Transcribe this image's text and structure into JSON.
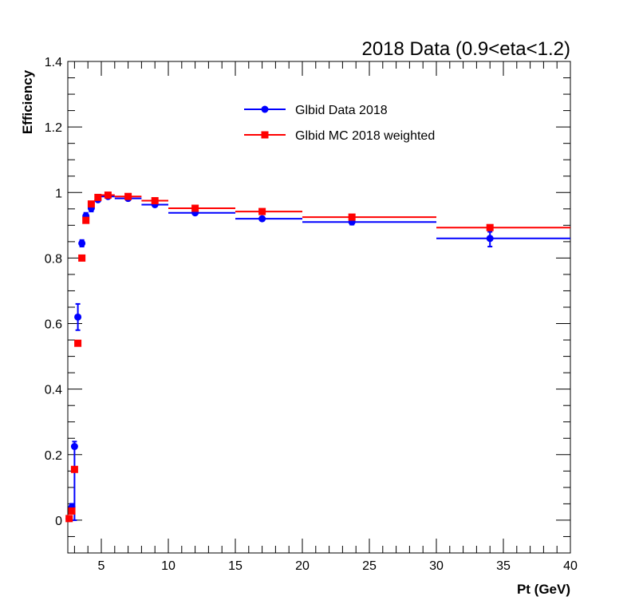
{
  "chart_data": {
    "type": "scatter",
    "title": "2018 Data (0.9<eta<1.2)",
    "xlabel": "Pt (GeV)",
    "ylabel": "Efficiency",
    "xlim": [
      2.5,
      40
    ],
    "ylim": [
      -0.1,
      1.4
    ],
    "xticks": [
      5,
      10,
      15,
      20,
      25,
      30,
      35,
      40
    ],
    "yticks": [
      0,
      0.2,
      0.4,
      0.6,
      0.8,
      1,
      1.2,
      1.4
    ],
    "ytick_labels": [
      "0",
      "0.2",
      "0.4",
      "0.6",
      "0.8",
      "1",
      "1.2",
      "1.4"
    ],
    "legend_position": "top-center",
    "series": [
      {
        "name": "Glbid Data 2018",
        "color": "#0000ff",
        "marker": "circle",
        "points": [
          {
            "x": 2.6,
            "y": 0.005,
            "xlo": 2.5,
            "xhi": 2.7,
            "ylo": 0.003,
            "yhi": 0.003
          },
          {
            "x": 2.8,
            "y": 0.04,
            "xlo": 2.7,
            "xhi": 2.9,
            "ylo": 0.01,
            "yhi": 0.01
          },
          {
            "x": 3.0,
            "y": 0.225,
            "xlo": 2.9,
            "xhi": 3.1,
            "ylo": 0.225,
            "yhi": 0.015
          },
          {
            "x": 3.25,
            "y": 0.62,
            "xlo": 3.1,
            "xhi": 3.4,
            "ylo": 0.04,
            "yhi": 0.04
          },
          {
            "x": 3.55,
            "y": 0.845,
            "xlo": 3.4,
            "xhi": 3.7,
            "ylo": 0.01,
            "yhi": 0.01
          },
          {
            "x": 3.85,
            "y": 0.928,
            "xlo": 3.7,
            "xhi": 4.0,
            "ylo": 0.01,
            "yhi": 0.01
          },
          {
            "x": 4.25,
            "y": 0.952,
            "xlo": 4.0,
            "xhi": 4.5,
            "ylo": 0.01,
            "yhi": 0.01
          },
          {
            "x": 4.75,
            "y": 0.978,
            "xlo": 4.5,
            "xhi": 5.0,
            "ylo": 0.005,
            "yhi": 0.005
          },
          {
            "x": 5.5,
            "y": 0.988,
            "xlo": 5.0,
            "xhi": 6.0,
            "ylo": 0.005,
            "yhi": 0.005
          },
          {
            "x": 7.0,
            "y": 0.982,
            "xlo": 6.0,
            "xhi": 8.0,
            "ylo": 0.005,
            "yhi": 0.005
          },
          {
            "x": 9.0,
            "y": 0.963,
            "xlo": 8.0,
            "xhi": 10.0,
            "ylo": 0.005,
            "yhi": 0.005
          },
          {
            "x": 12.0,
            "y": 0.938,
            "xlo": 10.0,
            "xhi": 15.0,
            "ylo": 0.005,
            "yhi": 0.005
          },
          {
            "x": 17.0,
            "y": 0.92,
            "xlo": 15.0,
            "xhi": 20.0,
            "ylo": 0.006,
            "yhi": 0.006
          },
          {
            "x": 23.7,
            "y": 0.91,
            "xlo": 20.0,
            "xhi": 30.0,
            "ylo": 0.008,
            "yhi": 0.008
          },
          {
            "x": 34.0,
            "y": 0.86,
            "xlo": 30.0,
            "xhi": 40.0,
            "ylo": 0.025,
            "yhi": 0.02
          }
        ]
      },
      {
        "name": "Glbid MC 2018 weighted",
        "color": "#ff0000",
        "marker": "square",
        "points": [
          {
            "x": 2.6,
            "y": 0.005,
            "xlo": 2.5,
            "xhi": 2.7
          },
          {
            "x": 2.8,
            "y": 0.028,
            "xlo": 2.7,
            "xhi": 2.9
          },
          {
            "x": 3.0,
            "y": 0.155,
            "xlo": 2.9,
            "xhi": 3.1
          },
          {
            "x": 3.25,
            "y": 0.54,
            "xlo": 3.1,
            "xhi": 3.4
          },
          {
            "x": 3.55,
            "y": 0.8,
            "xlo": 3.4,
            "xhi": 3.7
          },
          {
            "x": 3.85,
            "y": 0.915,
            "xlo": 3.7,
            "xhi": 4.0
          },
          {
            "x": 4.25,
            "y": 0.965,
            "xlo": 4.0,
            "xhi": 4.5
          },
          {
            "x": 4.75,
            "y": 0.985,
            "xlo": 4.5,
            "xhi": 5.0
          },
          {
            "x": 5.5,
            "y": 0.992,
            "xlo": 5.0,
            "xhi": 6.0
          },
          {
            "x": 7.0,
            "y": 0.988,
            "xlo": 6.0,
            "xhi": 8.0
          },
          {
            "x": 9.0,
            "y": 0.975,
            "xlo": 8.0,
            "xhi": 10.0
          },
          {
            "x": 12.0,
            "y": 0.952,
            "xlo": 10.0,
            "xhi": 15.0
          },
          {
            "x": 17.0,
            "y": 0.942,
            "xlo": 15.0,
            "xhi": 20.0
          },
          {
            "x": 23.7,
            "y": 0.925,
            "xlo": 20.0,
            "xhi": 30.0
          },
          {
            "x": 34.0,
            "y": 0.893,
            "xlo": 30.0,
            "xhi": 40.0
          }
        ]
      }
    ]
  }
}
